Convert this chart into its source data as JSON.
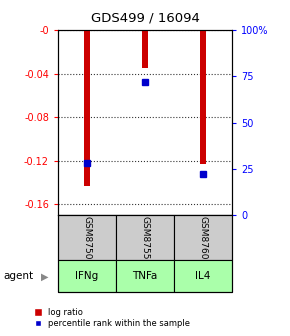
{
  "title": "GDS499 / 16094",
  "samples": [
    "GSM8750",
    "GSM8755",
    "GSM8760"
  ],
  "agents": [
    "IFNg",
    "TNFa",
    "IL4"
  ],
  "log_ratios": [
    -0.143,
    -0.035,
    -0.123
  ],
  "percentile_ranks": [
    0.28,
    0.72,
    0.22
  ],
  "bar_color": "#cc0000",
  "dot_color": "#0000cc",
  "ylim_left": [
    -0.17,
    0.0
  ],
  "ylim_right": [
    0.0,
    1.0
  ],
  "yticks_left": [
    0.0,
    -0.04,
    -0.08,
    -0.12,
    -0.16
  ],
  "ytick_labels_left": [
    "-0",
    "-0.04",
    "-0.08",
    "-0.12",
    "-0.16"
  ],
  "yticks_right": [
    0.0,
    0.25,
    0.5,
    0.75,
    1.0
  ],
  "ytick_labels_right": [
    "0",
    "25",
    "50",
    "75",
    "100%"
  ],
  "agent_color": "#aaffaa",
  "sample_color": "#cccccc",
  "legend_red_label": "log ratio",
  "legend_blue_label": "percentile rank within the sample",
  "agent_label": "agent",
  "bar_width": 0.12
}
